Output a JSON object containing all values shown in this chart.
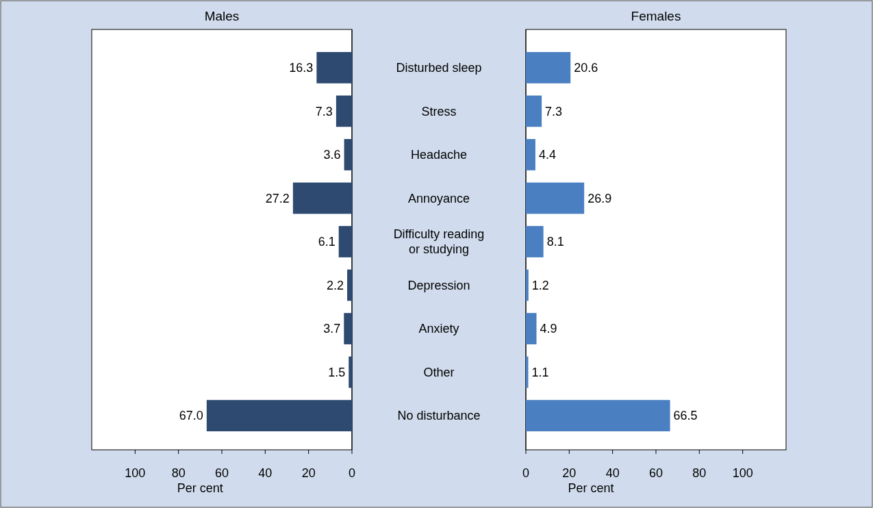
{
  "chart_data": [
    {
      "type": "bar",
      "orientation": "horizontal",
      "title": "Males",
      "xlabel": "Per cent",
      "categories": [
        "Disturbed sleep",
        "Stress",
        "Headache",
        "Annoyance",
        "Difficulty reading or studying",
        "Depression",
        "Anxiety",
        "Other",
        "No disturbance"
      ],
      "values": [
        16.3,
        7.3,
        3.6,
        27.2,
        6.1,
        2.2,
        3.7,
        1.5,
        67.0
      ],
      "color": "#2e4a70",
      "value_labels": [
        "16.3",
        "7.3",
        "3.6",
        "27.2",
        "6.1",
        "2.2",
        "3.7",
        "1.5",
        "67.0"
      ],
      "xlim": [
        120,
        0
      ],
      "xticks": [
        100,
        80,
        60,
        40,
        20,
        0
      ],
      "grid": false
    },
    {
      "type": "bar",
      "orientation": "horizontal",
      "title": "Females",
      "xlabel": "Per cent",
      "categories": [
        null,
        null,
        null,
        null,
        null,
        null,
        null,
        null,
        null
      ],
      "values": [
        20.6,
        7.3,
        4.4,
        26.9,
        8.1,
        1.2,
        4.9,
        1.1,
        66.5
      ],
      "color": "#4a7fc1",
      "value_labels": [
        "20.6",
        "7.3",
        "4.4",
        "26.9",
        "8.1",
        "1.2",
        "4.9",
        "1.1",
        "66.5"
      ],
      "xlim": [
        0,
        120
      ],
      "xticks": [
        0,
        20,
        40,
        60,
        80,
        100
      ],
      "grid": false
    }
  ]
}
